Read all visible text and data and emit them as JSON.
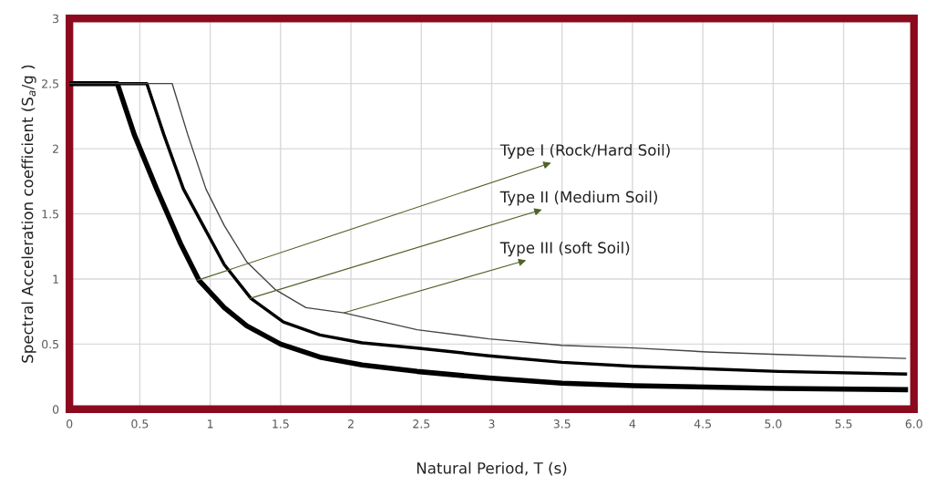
{
  "chart_data": {
    "type": "line",
    "xlabel": "Natural Period, T (s)",
    "ylabel": "Spectral Acceleration coefficient (S$_{a}$/g )",
    "xlim": [
      0,
      6
    ],
    "ylim": [
      0,
      3
    ],
    "xticks": [
      0,
      0.5,
      1,
      1.5,
      2,
      2.5,
      3,
      3.5,
      4,
      4.5,
      {
        "value": 5,
        "label": "5.0"
      },
      {
        "value": 5.5,
        "label": "5.5"
      },
      {
        "value": 6,
        "label": "6.0"
      }
    ],
    "yticks": [
      0,
      0.5,
      1,
      1.5,
      2,
      2.5,
      3
    ],
    "grid": true,
    "marker": "none",
    "line_style": "solid",
    "series": [
      {
        "color": "#000000",
        "x": [
          0,
          0.34,
          0.46,
          0.62,
          0.79,
          0.92,
          1.1,
          1.26,
          1.5,
          1.78,
          2.08,
          2.47,
          2.98,
          3.5,
          4.01,
          4.53,
          5.04,
          5.94
        ],
        "values": [
          2.5,
          2.5,
          2.11,
          1.69,
          1.27,
          0.99,
          0.78,
          0.64,
          0.5,
          0.4,
          0.34,
          0.29,
          0.24,
          0.2,
          0.18,
          0.17,
          0.16,
          0.15
        ]
      },
      {
        "color": "#000000",
        "x": [
          0,
          0.55,
          0.67,
          0.81,
          0.97,
          1.1,
          1.29,
          1.52,
          1.78,
          2.08,
          2.47,
          2.98,
          3.5,
          4.01,
          4.53,
          5.04,
          5.94
        ],
        "values": [
          2.5,
          2.5,
          2.11,
          1.69,
          1.37,
          1.11,
          0.85,
          0.67,
          0.57,
          0.51,
          0.47,
          0.41,
          0.36,
          0.33,
          0.31,
          0.29,
          0.27
        ]
      },
      {
        "color": "#444444",
        "x": [
          0,
          0.73,
          0.84,
          0.97,
          1.1,
          1.26,
          1.46,
          1.68,
          1.95,
          2.47,
          2.98,
          3.5,
          4.01,
          4.53,
          5.04,
          5.94
        ],
        "values": [
          2.5,
          2.5,
          2.11,
          1.69,
          1.41,
          1.13,
          0.92,
          0.78,
          0.74,
          0.61,
          0.54,
          0.49,
          0.47,
          0.44,
          0.42,
          0.39
        ]
      }
    ],
    "annotations": [
      {
        "text": "Type I (Rock/Hard Soil)",
        "x": 0.91,
        "y": 0.99
      },
      {
        "text": "Type II (Medium Soil)",
        "x": 1.28,
        "y": 0.85
      },
      {
        "text": "Type III (soft Soil)",
        "x": 1.95,
        "y": 0.74
      }
    ]
  }
}
